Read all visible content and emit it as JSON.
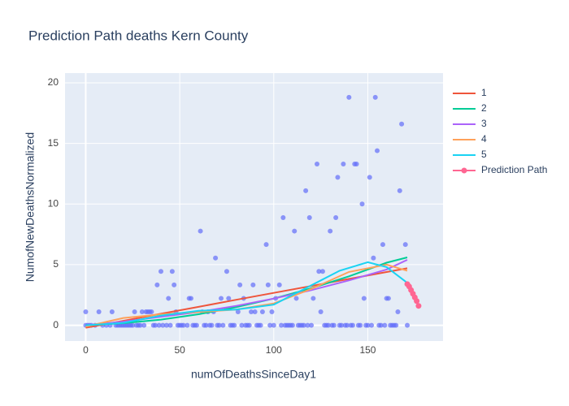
{
  "chart_data": {
    "type": "scatter",
    "title": "Prediction Path deaths Kern County",
    "xlabel": "numOfDeathsSinceDay1",
    "ylabel": "NumofNewDeathsNormalized",
    "xlim": [
      -11,
      190
    ],
    "ylim": [
      -1.3,
      20.8
    ],
    "xticks": [
      0,
      50,
      100,
      150
    ],
    "yticks": [
      0,
      5,
      10,
      15,
      20
    ],
    "grid": true,
    "legend": "right",
    "series": [
      {
        "mode": "markers",
        "color": "#636efa",
        "x": [
          0,
          7,
          14,
          26,
          30,
          32,
          33,
          34,
          35,
          38,
          40,
          44,
          46,
          47,
          48,
          55,
          56,
          61,
          62,
          65,
          68,
          69,
          72,
          75,
          76,
          82,
          81,
          84,
          89,
          88,
          90,
          96,
          94,
          97,
          99,
          103,
          101,
          105,
          111,
          112,
          117,
          119,
          121,
          123,
          124,
          126,
          125,
          130,
          133,
          134,
          137,
          140,
          143,
          144,
          147,
          148,
          151,
          153,
          154,
          155,
          158,
          160,
          161,
          166,
          167,
          168,
          170,
          0,
          1,
          2,
          3,
          5,
          9,
          11,
          13,
          16,
          17,
          18,
          19,
          20,
          21,
          22,
          23,
          24,
          25,
          27,
          28,
          29,
          31,
          36,
          37,
          39,
          41,
          43,
          45,
          49,
          50,
          51,
          52,
          54,
          57,
          58,
          59,
          63,
          64,
          66,
          67,
          70,
          71,
          73,
          77,
          78,
          79,
          83,
          85,
          86,
          87,
          91,
          92,
          93,
          98,
          100,
          104,
          106,
          107,
          108,
          109,
          110,
          113,
          114,
          115,
          116,
          118,
          120,
          127,
          128,
          129,
          131,
          132,
          135,
          136,
          138,
          139,
          141,
          142,
          145,
          146,
          149,
          150,
          152,
          156,
          157,
          159,
          162,
          163,
          164,
          165,
          171
        ],
        "values": [
          1.11,
          1.11,
          1.11,
          1.11,
          1.11,
          1.11,
          1.11,
          1.11,
          1.11,
          3.33,
          4.44,
          2.22,
          4.44,
          3.33,
          1.11,
          2.22,
          2.22,
          7.77,
          1.11,
          1.11,
          1.11,
          5.55,
          2.22,
          4.44,
          2.22,
          3.33,
          1.11,
          2.22,
          3.33,
          1.11,
          1.11,
          6.66,
          1.11,
          3.33,
          1.11,
          3.33,
          2.22,
          8.88,
          7.77,
          2.22,
          11.1,
          8.88,
          2.22,
          13.3,
          4.44,
          4.44,
          1.11,
          7.77,
          8.88,
          12.2,
          13.3,
          18.8,
          13.3,
          13.3,
          10,
          2.22,
          12.2,
          5.55,
          18.8,
          14.4,
          6.66,
          2.22,
          2.22,
          1.11,
          11.1,
          16.6,
          6.66,
          0,
          0,
          0,
          0,
          0,
          0,
          0,
          0,
          0,
          0,
          0,
          0,
          0,
          0,
          0,
          0,
          0,
          0,
          0,
          0,
          0,
          0,
          0,
          0,
          0,
          0,
          0,
          0,
          0,
          0,
          0,
          0,
          0,
          0,
          0,
          0,
          0,
          0,
          0,
          0,
          0,
          0,
          0,
          0,
          0,
          0,
          0,
          0,
          0,
          0,
          0,
          0,
          0,
          0,
          0,
          0,
          0,
          0,
          0,
          0,
          0,
          0,
          0,
          0,
          0,
          0,
          0,
          0,
          0,
          0,
          0,
          0,
          0,
          0,
          0,
          0,
          0,
          0,
          0,
          0,
          0,
          0,
          0,
          0,
          0,
          0,
          0,
          0,
          0,
          0,
          0
        ]
      },
      {
        "name": "1",
        "mode": "lines",
        "color": "#EF553B",
        "x": [
          0,
          20,
          40,
          60,
          80,
          100,
          120,
          140,
          160,
          171
        ],
        "values": [
          -0.2,
          0.37,
          0.95,
          1.52,
          2.1,
          2.67,
          3.24,
          3.82,
          4.39,
          4.7
        ]
      },
      {
        "name": "2",
        "mode": "lines",
        "color": "#00CC96",
        "x": [
          0,
          20,
          40,
          60,
          80,
          100,
          120,
          140,
          160,
          171
        ],
        "values": [
          0,
          0.17,
          0.47,
          0.91,
          1.49,
          2.2,
          3.05,
          4.04,
          5.16,
          5.6
        ]
      },
      {
        "name": "3",
        "mode": "lines",
        "color": "#AB63FA",
        "x": [
          0,
          20,
          40,
          60,
          80,
          100,
          120,
          140,
          160,
          171
        ],
        "values": [
          0,
          0.3,
          0.7,
          1.1,
          1.6,
          2.2,
          2.9,
          3.7,
          4.6,
          5.4
        ]
      },
      {
        "name": "4",
        "mode": "lines",
        "color": "#FFA15A",
        "x": [
          0,
          20,
          40,
          60,
          80,
          100,
          120,
          140,
          160,
          171
        ],
        "values": [
          -0.1,
          0.6,
          0.9,
          1.1,
          1.3,
          1.8,
          3,
          4.4,
          5,
          4.5
        ]
      },
      {
        "name": "5",
        "mode": "lines",
        "color": "#19D3F3",
        "x": [
          0,
          20,
          40,
          60,
          80,
          90,
          100,
          120,
          135,
          150,
          160,
          171
        ],
        "values": [
          0,
          0.2,
          0.8,
          1.2,
          1.3,
          1.5,
          1.7,
          3.3,
          4.5,
          5.2,
          4.8,
          3.5
        ]
      },
      {
        "name": "Prediction Path",
        "mode": "lines+markers",
        "color": "#FF6692",
        "x": [
          171,
          172,
          173,
          174,
          175,
          176,
          177
        ],
        "values": [
          3.4,
          3.2,
          2.9,
          2.6,
          2.3,
          2,
          1.6
        ]
      }
    ]
  }
}
